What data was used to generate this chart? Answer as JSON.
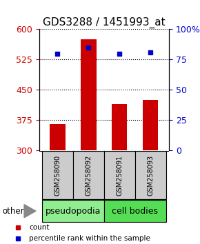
{
  "title": "GDS3288 / 1451993_at",
  "categories": [
    "GSM258090",
    "GSM258092",
    "GSM258091",
    "GSM258093"
  ],
  "bar_values": [
    365,
    575,
    415,
    425
  ],
  "percentile_values": [
    80,
    85,
    80,
    81
  ],
  "bar_color": "#cc0000",
  "percentile_color": "#0000cc",
  "ylim_left": [
    300,
    600
  ],
  "ylim_right": [
    0,
    100
  ],
  "yticks_left": [
    300,
    375,
    450,
    525,
    600
  ],
  "yticks_right": [
    0,
    25,
    50,
    75,
    100
  ],
  "ytick_labels_right": [
    "0",
    "25",
    "50",
    "75",
    "100%"
  ],
  "groups": [
    {
      "label": "pseudopodia",
      "color": "#90ee90"
    },
    {
      "label": "cell bodies",
      "color": "#55dd55"
    }
  ],
  "group_label_fontsize": 9,
  "other_label": "other",
  "legend_items": [
    {
      "color": "#cc0000",
      "label": "count"
    },
    {
      "color": "#0000cc",
      "label": "percentile rank within the sample"
    }
  ],
  "bar_width": 0.5,
  "axis_label_color_left": "#cc0000",
  "axis_label_color_right": "#0000cc",
  "tick_fontsize": 9,
  "title_fontsize": 11,
  "background_plot": "#ffffff",
  "background_fig": "#ffffff",
  "sample_box_color": "#cccccc",
  "arrow_color": "#888888"
}
